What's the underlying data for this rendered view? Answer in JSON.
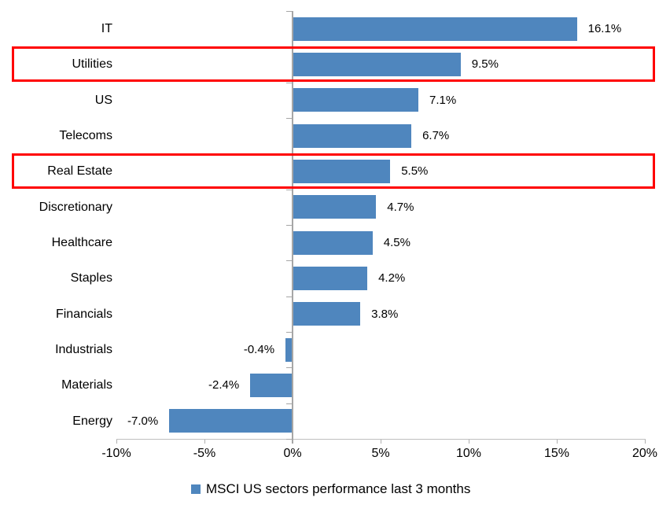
{
  "chart_data": {
    "type": "bar",
    "orientation": "horizontal",
    "title": "",
    "categories": [
      "IT",
      "Utilities",
      "US",
      "Telecoms",
      "Real Estate",
      "Discretionary",
      "Healthcare",
      "Staples",
      "Financials",
      "Industrials",
      "Materials",
      "Energy"
    ],
    "values": [
      16.1,
      9.5,
      7.1,
      6.7,
      5.5,
      4.7,
      4.5,
      4.2,
      3.8,
      -0.4,
      -2.4,
      -7.0
    ],
    "value_labels": [
      "16.1%",
      "9.5%",
      "7.1%",
      "6.7%",
      "5.5%",
      "4.7%",
      "4.5%",
      "4.2%",
      "3.8%",
      "-0.4%",
      "-2.4%",
      "-7.0%"
    ],
    "highlighted_categories": [
      "Utilities",
      "Real Estate"
    ],
    "x_axis": {
      "min": -10,
      "max": 20,
      "ticks": [
        -10,
        -5,
        0,
        5,
        10,
        15,
        20
      ],
      "tick_labels": [
        "-10%",
        "-5%",
        "0%",
        "5%",
        "10%",
        "15%",
        "20%"
      ]
    },
    "grid": false,
    "legend": {
      "position": "bottom",
      "label": "MSCI US sectors performance last 3 months"
    },
    "colors": {
      "bar": "#4f86be",
      "highlight_border": "#ff0000",
      "x_axis_line": "#bfbfbf",
      "y_axis_line": "#a6a6a6",
      "text": "#000000"
    }
  }
}
